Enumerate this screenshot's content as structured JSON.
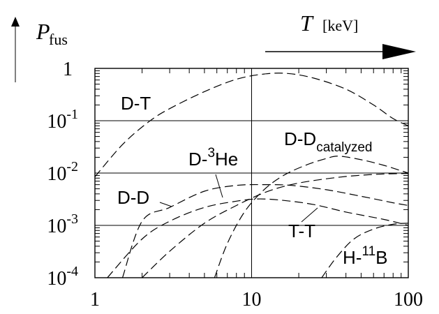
{
  "chart_data": {
    "type": "line",
    "title": "",
    "y_axis_label": {
      "main": "P",
      "sub": "fus"
    },
    "x_axis_label": {
      "main": "T",
      "unit": "[keV]"
    },
    "xscale": "log",
    "yscale": "log",
    "xlim": [
      1,
      100
    ],
    "ylim": [
      0.0001,
      1
    ],
    "grid": true,
    "x_ticks": [
      {
        "value": 1,
        "label": "1"
      },
      {
        "value": 10,
        "label": "10"
      },
      {
        "value": 100,
        "label": "100"
      }
    ],
    "y_ticks": [
      {
        "value": 1,
        "base": "1",
        "exp": ""
      },
      {
        "value": 0.1,
        "base": "10",
        "exp": "-1"
      },
      {
        "value": 0.01,
        "base": "10",
        "exp": "-2"
      },
      {
        "value": 0.001,
        "base": "10",
        "exp": "-3"
      },
      {
        "value": 0.0001,
        "base": "10",
        "exp": "-4"
      }
    ],
    "series": [
      {
        "name": "D-T",
        "label_parts": {
          "pre": "D-T",
          "sup": "",
          "post": "",
          "sub": ""
        },
        "points": [
          [
            1.0,
            0.0085
          ],
          [
            1.5,
            0.035
          ],
          [
            2.2,
            0.095
          ],
          [
            3.0,
            0.17
          ],
          [
            5.0,
            0.36
          ],
          [
            8.0,
            0.62
          ],
          [
            12.0,
            0.78
          ],
          [
            17.0,
            0.8
          ],
          [
            25.0,
            0.65
          ],
          [
            40.0,
            0.4
          ],
          [
            60.0,
            0.2
          ],
          [
            80.0,
            0.11
          ],
          [
            100.0,
            0.08
          ]
        ]
      },
      {
        "name": "D-D catalyzed",
        "label_parts": {
          "pre": "D-D",
          "sup": "",
          "post": "",
          "sub": "catalyzed"
        },
        "points": [
          [
            5.8,
            0.0001
          ],
          [
            7.0,
            0.00045
          ],
          [
            9.0,
            0.0018
          ],
          [
            12.0,
            0.0048
          ],
          [
            16.0,
            0.009
          ],
          [
            22.0,
            0.014
          ],
          [
            30.0,
            0.019
          ],
          [
            36.0,
            0.021
          ],
          [
            50.0,
            0.018
          ],
          [
            70.0,
            0.014
          ],
          [
            100.0,
            0.01
          ]
        ]
      },
      {
        "name": "D-3He",
        "label_parts": {
          "pre": "D-",
          "sup": "3",
          "post": "He",
          "sub": ""
        },
        "points": [
          [
            2.0,
            0.0001
          ],
          [
            3.0,
            0.00032
          ],
          [
            5.0,
            0.0011
          ],
          [
            8.0,
            0.0024
          ],
          [
            12.0,
            0.0042
          ],
          [
            17.0,
            0.0058
          ],
          [
            25.0,
            0.0072
          ],
          [
            40.0,
            0.0086
          ],
          [
            60.0,
            0.0094
          ],
          [
            80.0,
            0.0097
          ],
          [
            100.0,
            0.0098
          ]
        ]
      },
      {
        "name": "D-D",
        "label_parts": {
          "pre": "D-D",
          "sup": "",
          "post": "",
          "sub": ""
        },
        "points": [
          [
            1.5,
            0.0001
          ],
          [
            2.0,
            0.0012
          ],
          [
            3.0,
            0.0022
          ],
          [
            5.0,
            0.0045
          ],
          [
            8.0,
            0.0058
          ],
          [
            12.0,
            0.006
          ],
          [
            18.0,
            0.0058
          ],
          [
            30.0,
            0.0048
          ],
          [
            50.0,
            0.0036
          ],
          [
            80.0,
            0.0027
          ],
          [
            100.0,
            0.0024
          ]
        ]
      },
      {
        "name": "T-T",
        "label_parts": {
          "pre": "T-T",
          "sup": "",
          "post": "",
          "sub": ""
        },
        "points": [
          [
            1.2,
            0.0001
          ],
          [
            2.0,
            0.00055
          ],
          [
            3.0,
            0.0012
          ],
          [
            5.0,
            0.0022
          ],
          [
            8.0,
            0.0029
          ],
          [
            11.0,
            0.0032
          ],
          [
            16.0,
            0.003
          ],
          [
            25.0,
            0.0025
          ],
          [
            40.0,
            0.0018
          ],
          [
            70.0,
            0.0013
          ],
          [
            100.0,
            0.001
          ]
        ]
      },
      {
        "name": "H-11B",
        "label_parts": {
          "pre": "H-",
          "sup": "11",
          "post": "B",
          "sub": ""
        },
        "points": [
          [
            28.0,
            0.0001
          ],
          [
            35.0,
            0.00025
          ],
          [
            45.0,
            0.00055
          ],
          [
            60.0,
            0.00085
          ],
          [
            80.0,
            0.00105
          ],
          [
            100.0,
            0.0011
          ]
        ]
      }
    ]
  }
}
